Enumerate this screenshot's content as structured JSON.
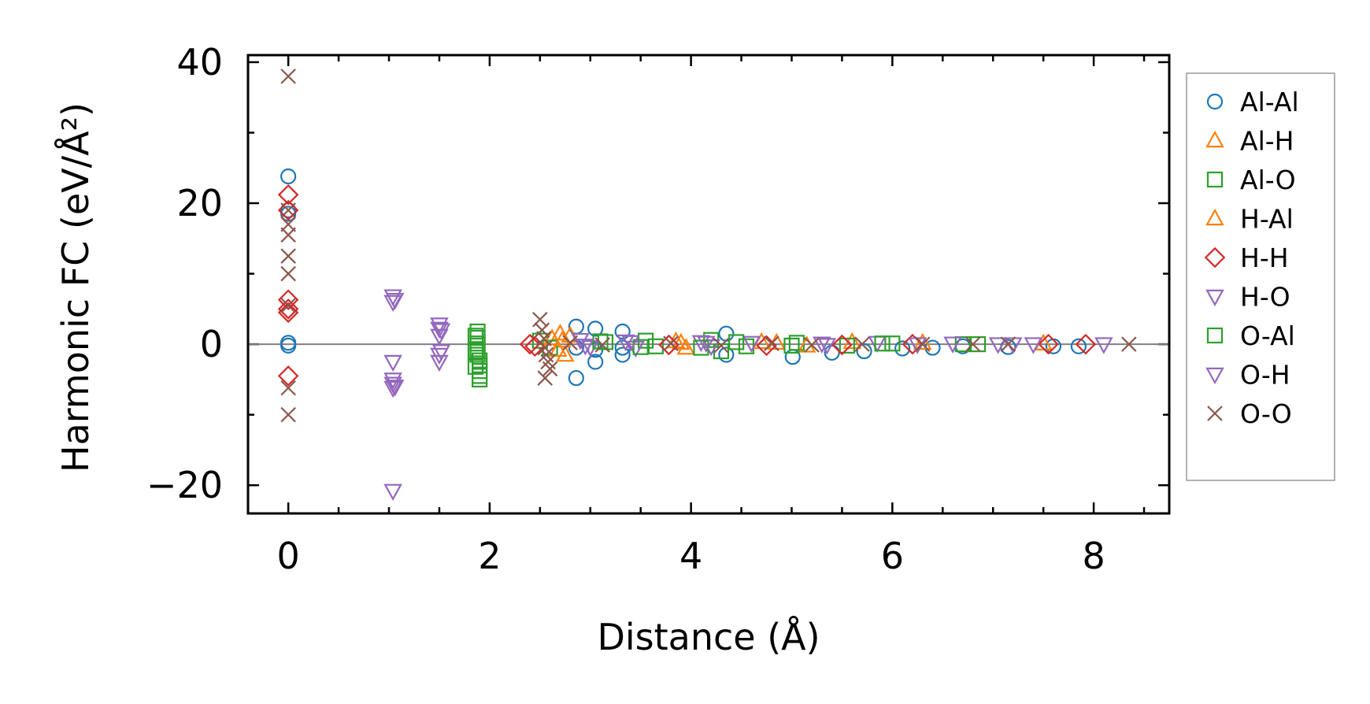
{
  "chart_data": {
    "type": "scatter",
    "title": "",
    "xlabel": "Distance (Å)",
    "ylabel": "Harmonic FC (eV/Å²)",
    "xlim": [
      -0.4,
      8.75
    ],
    "ylim": [
      -24,
      41
    ],
    "xticks": [
      0,
      2,
      4,
      6,
      8
    ],
    "xtick_labels": [
      "0",
      "2",
      "4",
      "6",
      "8"
    ],
    "yticks": [
      -20,
      0,
      20,
      40
    ],
    "ytick_labels": [
      "−20",
      "0",
      "20",
      "40"
    ],
    "grid": false,
    "legend_position": "outside-right",
    "zero_line": {
      "y": 0,
      "color": "#808080"
    },
    "series": [
      {
        "name": "Al-Al",
        "marker": "circle",
        "color": "#1f77b4",
        "x": [
          0,
          0,
          0,
          0,
          0,
          2.86,
          2.86,
          2.86,
          3.05,
          3.05,
          3.05,
          3.32,
          3.32,
          3.32,
          4.35,
          4.35,
          5.01,
          5.4,
          5.72,
          6.1,
          6.4,
          6.7,
          7.15,
          7.6,
          7.85
        ],
        "y": [
          23.8,
          19.0,
          18.5,
          0.2,
          -0.2,
          2.5,
          -0.5,
          -4.8,
          2.2,
          -0.8,
          -2.5,
          1.8,
          -0.5,
          -1.5,
          1.5,
          -1.5,
          -1.8,
          -1.2,
          -1.0,
          -0.6,
          -0.5,
          -0.3,
          -0.4,
          -0.3,
          -0.3
        ]
      },
      {
        "name": "Al-H",
        "marker": "triangle-up",
        "color": "#ff7f0e",
        "x": [
          2.7,
          2.75,
          2.72,
          3.9,
          3.95,
          4.85,
          5.6,
          6.3,
          7.5
        ],
        "y": [
          1.5,
          -1.5,
          0.5,
          0.2,
          -0.5,
          0.2,
          0.3,
          0.2,
          0.1
        ]
      },
      {
        "name": "Al-O",
        "marker": "square",
        "color": "#2ca02c",
        "x": [
          1.88,
          1.88,
          1.88,
          1.88,
          1.88,
          1.9,
          1.9,
          1.9,
          1.9,
          1.9,
          2.5,
          2.6,
          3.15,
          3.55,
          3.65,
          4.2,
          4.3,
          4.55,
          5.05,
          5.55,
          6.0,
          6.7
        ],
        "y": [
          1.8,
          0.9,
          0.1,
          -0.7,
          -1.5,
          -2.3,
          -3.0,
          -3.8,
          -4.5,
          -5.0,
          0.5,
          -0.5,
          0.3,
          0.5,
          -0.3,
          0.6,
          -1.0,
          -0.3,
          0.2,
          -0.2,
          0.1,
          0.0
        ]
      },
      {
        "name": "H-Al",
        "marker": "triangle-up",
        "color": "#ff7f0e",
        "x": [
          2.62,
          2.68,
          2.8,
          3.85,
          4.7,
          5.15
        ],
        "y": [
          0.8,
          -0.8,
          1.2,
          0.4,
          0.3,
          -0.2
        ]
      },
      {
        "name": "H-H",
        "marker": "diamond",
        "color": "#d62728",
        "x": [
          0,
          0,
          0,
          0,
          0,
          0,
          2.4,
          2.45,
          3.78,
          4.75,
          5.5,
          6.2,
          7.55,
          7.92
        ],
        "y": [
          21.2,
          19.0,
          6.3,
          5.0,
          4.5,
          -4.5,
          0.0,
          -0.3,
          -0.1,
          -0.2,
          -0.1,
          0.0,
          0.0,
          0.0
        ]
      },
      {
        "name": "H-O",
        "marker": "triangle-down",
        "color": "#9467bd",
        "x": [
          1.04,
          1.04,
          1.04,
          1.04,
          1.04,
          1.04,
          1.04,
          1.5,
          1.5,
          1.5,
          1.5,
          1.5,
          2.9,
          3.0,
          3.35,
          3.45,
          4.1,
          4.2,
          4.6,
          5.3,
          5.85,
          6.6,
          7.05,
          7.4,
          8.1
        ],
        "y": [
          6.8,
          6.0,
          -2.5,
          -5.0,
          -5.6,
          -6.2,
          -20.8,
          2.8,
          2.2,
          1.2,
          -1.5,
          -2.5,
          0.6,
          -0.4,
          0.4,
          -0.5,
          0.3,
          -0.3,
          0.2,
          0.1,
          0.2,
          0.1,
          0.0,
          0.0,
          0.0
        ]
      },
      {
        "name": "O-Al",
        "marker": "square",
        "color": "#2ca02c",
        "x": [
          1.86,
          1.86,
          1.86,
          3.1,
          3.5,
          4.1,
          4.45,
          5.0,
          5.9,
          6.85
        ],
        "y": [
          1.2,
          -1.0,
          -3.2,
          0.4,
          -0.4,
          -0.5,
          0.3,
          -0.2,
          0.1,
          0.0
        ]
      },
      {
        "name": "O-H",
        "marker": "triangle-down",
        "color": "#9467bd",
        "x": [
          1.06,
          1.06,
          1.52,
          1.52,
          2.95,
          3.4,
          4.15,
          5.35,
          6.25,
          7.2
        ],
        "y": [
          6.3,
          -6.0,
          2.0,
          -1.0,
          -0.2,
          0.3,
          0.2,
          -0.1,
          0.0,
          0.0
        ]
      },
      {
        "name": "O-O",
        "marker": "x",
        "color": "#8c564b",
        "x": [
          0,
          0,
          0,
          0,
          0,
          0,
          0,
          0,
          0,
          2.5,
          2.52,
          2.54,
          2.55,
          2.56,
          2.58,
          2.6,
          2.55,
          2.8,
          3.12,
          3.8,
          4.3,
          4.8,
          5.2,
          5.7,
          6.3,
          6.8,
          7.15,
          8.35
        ],
        "y": [
          38.0,
          19.0,
          15.5,
          12.5,
          10.0,
          5.5,
          -6.2,
          -10.0,
          17.0,
          3.5,
          2.0,
          0.8,
          -0.5,
          -1.5,
          -2.5,
          -3.5,
          -4.8,
          0.2,
          -0.1,
          0.1,
          -0.2,
          0.1,
          -0.1,
          0.0,
          0.0,
          0.0,
          0.0,
          0.0
        ]
      }
    ]
  }
}
